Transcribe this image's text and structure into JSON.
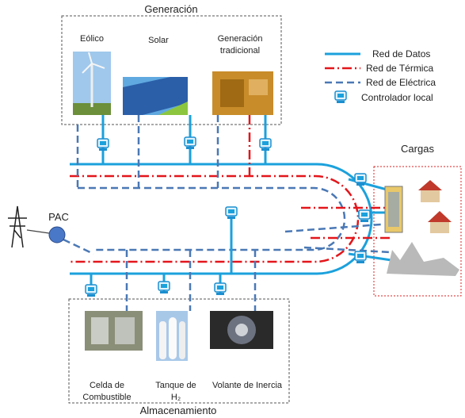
{
  "header": {
    "generation": "Generación",
    "storage": "Almacenamiento",
    "loads": "Cargas",
    "pac": "PAC"
  },
  "generation_sources": [
    {
      "lines": [
        "Eólico"
      ]
    },
    {
      "lines": [
        "Solar"
      ]
    },
    {
      "lines": [
        "Generación",
        "tradicional"
      ]
    }
  ],
  "storage_units": [
    {
      "lines": [
        "Celda de",
        "Combustible"
      ]
    },
    {
      "lines": [
        "Tanque de",
        "H₂"
      ]
    },
    {
      "lines": [
        "Volante de Inercia"
      ]
    }
  ],
  "legend": [
    {
      "label": "Red de Datos"
    },
    {
      "label": "Red de Térmica"
    },
    {
      "label": "Red de Eléctrica"
    },
    {
      "label": "Controlador local"
    }
  ]
}
